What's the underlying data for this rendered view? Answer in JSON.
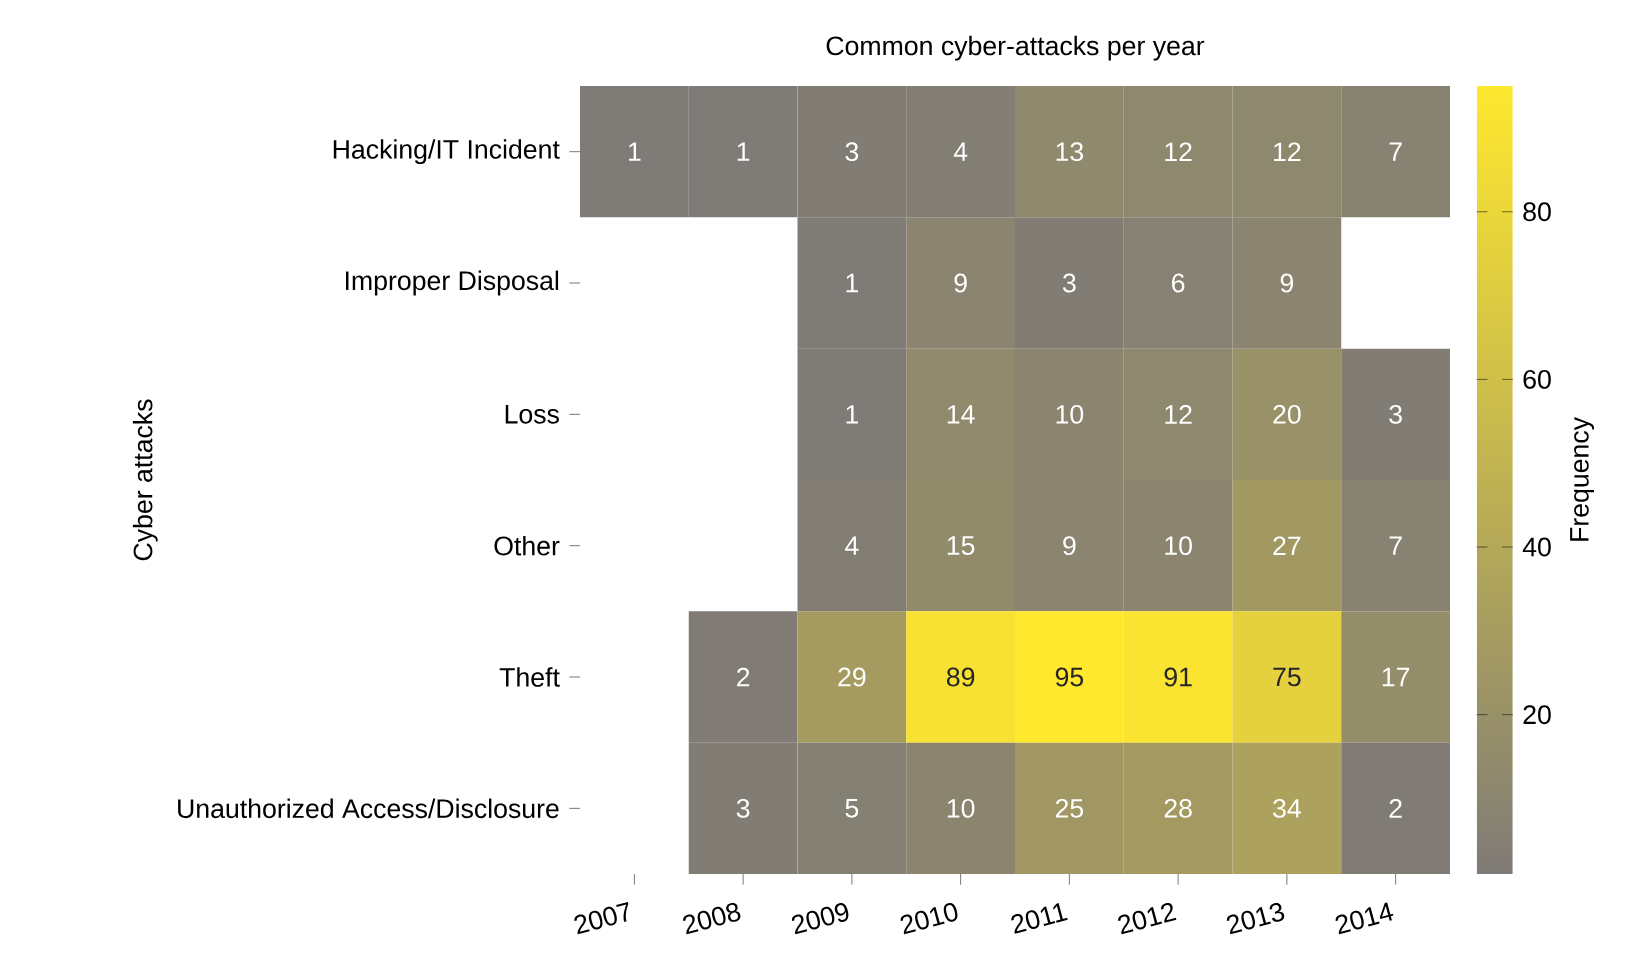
{
  "chart_data": {
    "type": "heatmap",
    "title": "Common cyber-attacks per year",
    "ylabel": "Cyber attacks",
    "clabel": "Frequency",
    "categories": [
      "2007",
      "2008",
      "2009",
      "2010",
      "2011",
      "2012",
      "2013",
      "2014"
    ],
    "y_categories": [
      "Hacking/IT Incident",
      "Improper Disposal",
      "Loss",
      "Other",
      "Theft",
      "Unauthorized Access/Disclosure"
    ],
    "cells": [
      [
        1,
        1,
        3,
        4,
        13,
        12,
        12,
        7
      ],
      [
        null,
        null,
        1,
        9,
        3,
        6,
        9,
        null
      ],
      [
        null,
        null,
        1,
        14,
        10,
        12,
        20,
        3
      ],
      [
        null,
        null,
        4,
        15,
        9,
        10,
        27,
        7
      ],
      [
        null,
        2,
        29,
        89,
        95,
        91,
        75,
        17
      ],
      [
        null,
        3,
        5,
        10,
        25,
        28,
        34,
        2
      ]
    ],
    "clim": [
      1,
      95
    ],
    "cticks": [
      20,
      40,
      60,
      80
    ],
    "data_labels": true
  }
}
